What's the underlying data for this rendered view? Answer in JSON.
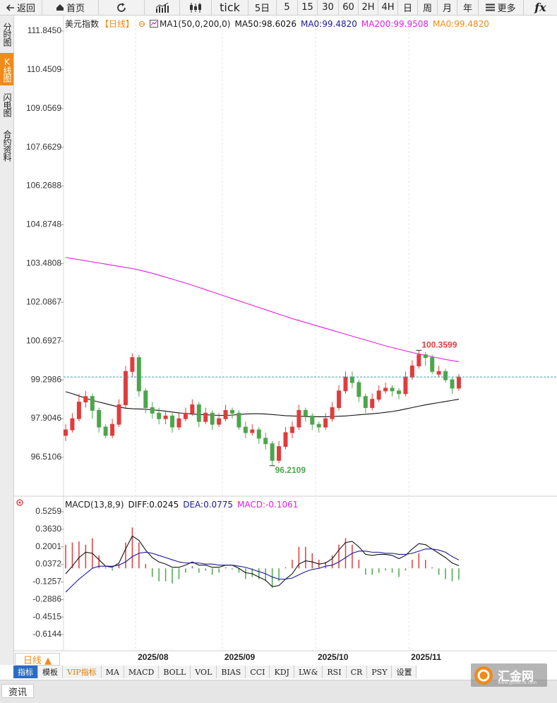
{
  "toolbar": [
    "返回",
    "首页",
    "tick",
    "5日",
    "5",
    "15",
    "30",
    "60",
    "2H",
    "4H",
    "日",
    "周",
    "月",
    "年",
    "更多",
    "fx"
  ],
  "sidebar": [
    "分时图",
    "K线图",
    "闪电图",
    "合约资料"
  ],
  "period_button": "日线 ▲",
  "tabs": [
    "指标",
    "模板",
    "VIP指标",
    "MA",
    "MACD",
    "BOLL",
    "VOL",
    "BIAS",
    "CCI",
    "KDJ",
    "LW&",
    "RSI",
    "CR",
    "PSY",
    "设置"
  ],
  "bottom_tab": "资讯",
  "logo": "汇金网",
  "logo_url": "www.gold678.com",
  "chart_data": [
    {
      "type": "candlestick",
      "title": "美元指数",
      "period": "【日线】",
      "indicator": "MA1(50,0,200,0)",
      "ma0_labels": [
        {
          "text": "MA0:99.4820",
          "color": "#1a1a9a"
        },
        {
          "text": "MA0:99.4820",
          "color": "#f08a18"
        }
      ],
      "up_color": "#e03c3c",
      "down_color": "#4ca64c",
      "last_price_color": "#3a9ab0",
      "ylim": [
        95.19,
        112.4
      ],
      "yticks": [
        {
          "value": 111.845,
          "label": "111.8450"
        },
        110.4509,
        109.0569,
        107.6629,
        106.2688,
        104.8748,
        103.4808,
        102.0867,
        100.6927,
        99.2986,
        97.9046,
        96.5106
      ],
      "categories": [
        null,
        null,
        null,
        null,
        null,
        null,
        null,
        null,
        null,
        null,
        null,
        "2025/08",
        null,
        null,
        null,
        null,
        null,
        null,
        null,
        null,
        null,
        null,
        null,
        null,
        "2025/09",
        null,
        null,
        null,
        null,
        null,
        null,
        null,
        null,
        null,
        null,
        null,
        null,
        null,
        "2025/10",
        null,
        null,
        null,
        null,
        null,
        null,
        null,
        null,
        null,
        null,
        null,
        null,
        null,
        "2025/11",
        null,
        null,
        null,
        null,
        null,
        null,
        null
      ],
      "open": [
        97.3,
        97.5,
        97.9,
        98.5,
        98.7,
        98.2,
        97.6,
        97.3,
        97.7,
        98.4,
        99.6,
        100.1,
        98.9,
        98.3,
        98.1,
        97.9,
        98.0,
        97.6,
        97.9,
        98.1,
        98.4,
        97.8,
        98.1,
        97.7,
        97.9,
        98.2,
        98.1,
        97.6,
        97.4,
        97.5,
        97.2,
        97.0,
        96.4,
        96.9,
        97.4,
        97.6,
        98.2,
        98.0,
        97.7,
        97.6,
        97.9,
        98.3,
        98.9,
        99.4,
        99.2,
        98.7,
        98.3,
        98.6,
        98.9,
        99.0,
        98.9,
        98.8,
        99.4,
        99.8,
        100.2,
        100.1,
        99.5,
        99.6,
        99.3,
        99.0
      ],
      "high": [
        97.7,
        98.1,
        98.8,
        98.9,
        98.8,
        98.3,
        97.7,
        97.9,
        98.6,
        99.8,
        100.25,
        100.2,
        99.0,
        98.5,
        98.3,
        98.2,
        98.1,
        98.1,
        98.3,
        98.6,
        98.5,
        98.3,
        98.2,
        98.1,
        98.4,
        98.3,
        98.2,
        97.8,
        97.7,
        97.6,
        97.4,
        97.1,
        97.1,
        97.6,
        97.8,
        98.4,
        98.3,
        98.1,
        97.8,
        98.1,
        98.5,
        99.1,
        99.6,
        99.6,
        99.3,
        98.8,
        98.8,
        99.1,
        99.2,
        99.1,
        99.0,
        99.6,
        100.0,
        100.3599,
        100.3,
        100.2,
        99.8,
        99.7,
        99.4,
        99.5
      ],
      "low": [
        97.1,
        97.4,
        97.8,
        98.3,
        97.9,
        97.4,
        97.2,
        97.2,
        97.6,
        98.3,
        99.4,
        98.7,
        98.1,
        97.9,
        97.7,
        97.7,
        97.4,
        97.5,
        97.8,
        98.0,
        97.6,
        97.7,
        97.5,
        97.6,
        97.8,
        97.9,
        97.5,
        97.2,
        97.3,
        97.0,
        96.8,
        96.2109,
        96.3,
        96.8,
        97.2,
        97.5,
        97.8,
        97.5,
        97.4,
        97.5,
        97.8,
        98.2,
        98.8,
        99.0,
        98.5,
        98.1,
        98.2,
        98.5,
        98.8,
        98.7,
        98.6,
        98.7,
        99.3,
        99.7,
        99.8,
        99.5,
        99.4,
        99.2,
        98.8,
        98.9
      ],
      "close": [
        97.5,
        97.9,
        98.5,
        98.7,
        98.2,
        97.6,
        97.3,
        97.7,
        98.4,
        99.6,
        100.1,
        98.9,
        98.3,
        98.1,
        97.9,
        98.0,
        97.6,
        97.9,
        98.1,
        98.4,
        97.8,
        98.1,
        97.7,
        97.9,
        98.2,
        98.1,
        97.6,
        97.4,
        97.5,
        97.2,
        97.0,
        96.4,
        96.9,
        97.4,
        97.6,
        98.2,
        98.0,
        97.7,
        97.6,
        97.9,
        98.3,
        98.9,
        99.4,
        99.2,
        98.7,
        98.3,
        98.6,
        98.9,
        99.0,
        98.9,
        98.8,
        99.4,
        99.8,
        100.2,
        100.1,
        99.6,
        99.6,
        99.3,
        99.0,
        99.4
      ],
      "series": [
        {
          "name": "MA50:98.6026",
          "color": "#111111",
          "values": [
            98.87,
            98.8,
            98.72,
            98.64,
            98.56,
            98.5,
            98.44,
            98.38,
            98.32,
            98.28,
            98.26,
            98.25,
            98.24,
            98.22,
            98.2,
            98.17,
            98.14,
            98.11,
            98.09,
            98.07,
            98.05,
            98.04,
            98.03,
            98.02,
            98.02,
            98.03,
            98.05,
            98.07,
            98.08,
            98.08,
            98.07,
            98.05,
            98.03,
            98.01,
            98.0,
            97.99,
            97.98,
            97.97,
            97.97,
            97.97,
            97.98,
            97.99,
            98.0,
            98.02,
            98.04,
            98.06,
            98.08,
            98.1,
            98.13,
            98.16,
            98.2,
            98.25,
            98.3,
            98.35,
            98.4,
            98.44,
            98.48,
            98.52,
            98.56,
            98.6026
          ]
        },
        {
          "name": "MA200:99.9508",
          "color": "#e020e0",
          "values": [
            103.7,
            103.66,
            103.62,
            103.58,
            103.54,
            103.5,
            103.46,
            103.42,
            103.38,
            103.34,
            103.3,
            103.25,
            103.19,
            103.13,
            103.06,
            102.99,
            102.92,
            102.85,
            102.78,
            102.7,
            102.62,
            102.54,
            102.46,
            102.38,
            102.3,
            102.22,
            102.14,
            102.06,
            101.98,
            101.9,
            101.82,
            101.74,
            101.66,
            101.58,
            101.5,
            101.43,
            101.36,
            101.29,
            101.22,
            101.15,
            101.08,
            101.01,
            100.94,
            100.87,
            100.8,
            100.73,
            100.66,
            100.59,
            100.52,
            100.46,
            100.4,
            100.34,
            100.28,
            100.23,
            100.18,
            100.13,
            100.08,
            100.03,
            99.99,
            99.9508
          ]
        }
      ]
    },
    {
      "type": "macd",
      "title": "MACD(13,8,9)",
      "histogram_name": "MACD:-0.1061",
      "histogram_colors": [
        "#e03c3c",
        "#4ca64c"
      ],
      "ylim": [
        -0.752,
        0.657
      ],
      "yticks": [
        0.5259,
        {
          "value": 0.363,
          "label": "0.3630"
        },
        0.2001,
        0.0372,
        -0.1257,
        -0.2886,
        -0.4515,
        -0.6144
      ],
      "histogram": [
        0.22,
        0.24,
        0.25,
        0.22,
        0.28,
        0.12,
        0.01,
        -0.02,
        0.04,
        0.24,
        0.38,
        0.24,
        0.04,
        -0.08,
        -0.12,
        -0.12,
        -0.14,
        -0.1,
        -0.04,
        0.02,
        -0.04,
        -0.02,
        -0.06,
        -0.04,
        0.01,
        -0.01,
        -0.04,
        -0.1,
        -0.08,
        -0.1,
        -0.12,
        -0.18,
        -0.12,
        0.01,
        0.08,
        0.2,
        0.2,
        0.14,
        0.08,
        0.06,
        0.12,
        0.22,
        0.28,
        0.22,
        0.08,
        -0.06,
        -0.06,
        -0.04,
        -0.02,
        -0.04,
        -0.08,
        -0.02,
        0.08,
        0.14,
        0.08,
        0.01,
        -0.06,
        -0.1,
        -0.12,
        -0.1061
      ],
      "series": [
        {
          "name": "DIFF:0.0245",
          "color": "#111111",
          "values": [
            -0.05,
            0.02,
            0.1,
            0.15,
            0.14,
            0.08,
            0.02,
            0.01,
            0.05,
            0.18,
            0.3,
            0.26,
            0.17,
            0.1,
            0.06,
            0.04,
            0.01,
            0.01,
            0.03,
            0.06,
            0.03,
            0.03,
            0.01,
            0.01,
            0.03,
            0.03,
            0.0,
            -0.04,
            -0.05,
            -0.08,
            -0.11,
            -0.17,
            -0.16,
            -0.1,
            -0.05,
            0.04,
            0.07,
            0.06,
            0.04,
            0.05,
            0.09,
            0.17,
            0.24,
            0.25,
            0.2,
            0.13,
            0.12,
            0.13,
            0.13,
            0.12,
            0.09,
            0.12,
            0.18,
            0.23,
            0.22,
            0.18,
            0.14,
            0.1,
            0.05,
            0.0245
          ]
        },
        {
          "name": "DEA:0.0775",
          "color": "#1a1a9a",
          "values": [
            -0.22,
            -0.16,
            -0.1,
            -0.05,
            0.0,
            0.02,
            0.02,
            0.02,
            0.03,
            0.06,
            0.11,
            0.14,
            0.15,
            0.14,
            0.12,
            0.1,
            0.08,
            0.06,
            0.05,
            0.05,
            0.05,
            0.04,
            0.04,
            0.03,
            0.03,
            0.03,
            0.02,
            0.01,
            -0.01,
            -0.03,
            -0.05,
            -0.08,
            -0.1,
            -0.1,
            -0.09,
            -0.06,
            -0.03,
            -0.01,
            0.0,
            0.02,
            0.03,
            0.06,
            0.1,
            0.14,
            0.16,
            0.16,
            0.15,
            0.15,
            0.14,
            0.14,
            0.13,
            0.13,
            0.14,
            0.16,
            0.18,
            0.18,
            0.17,
            0.15,
            0.11,
            0.0775
          ]
        }
      ]
    }
  ]
}
